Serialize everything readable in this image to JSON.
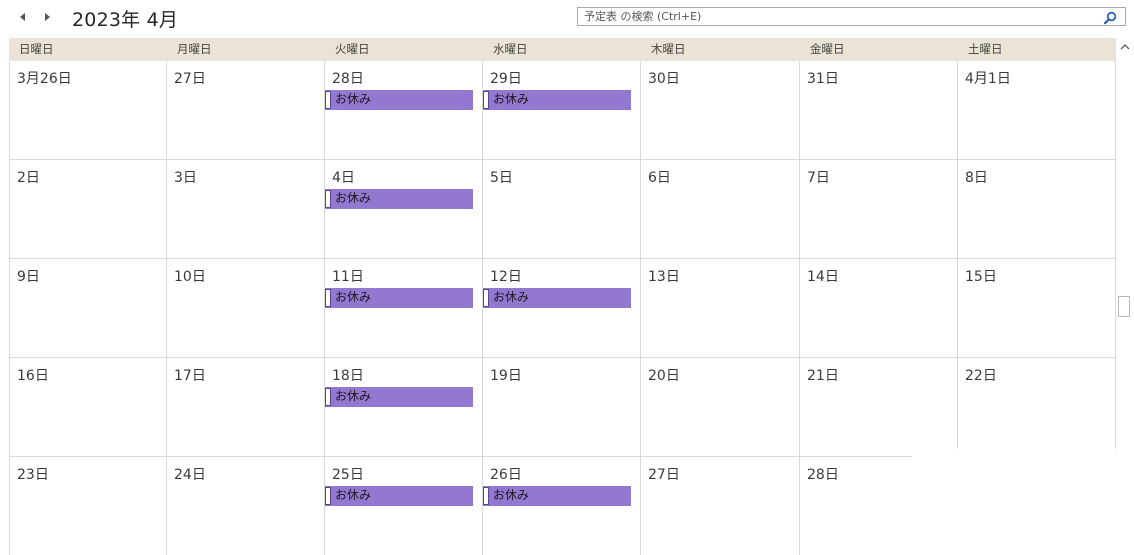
{
  "header": {
    "title": "2023年 4月",
    "search_placeholder": "予定表 の検索 (Ctrl+E)"
  },
  "weekdays": [
    "日曜日",
    "月曜日",
    "火曜日",
    "水曜日",
    "木曜日",
    "金曜日",
    "土曜日"
  ],
  "weeks": [
    [
      "3月26日",
      "27日",
      "28日",
      "29日",
      "30日",
      "31日",
      "4月1日"
    ],
    [
      "2日",
      "3日",
      "4日",
      "5日",
      "6日",
      "7日",
      "8日"
    ],
    [
      "9日",
      "10日",
      "11日",
      "12日",
      "13日",
      "14日",
      "15日"
    ],
    [
      "16日",
      "17日",
      "18日",
      "19日",
      "20日",
      "21日",
      "22日"
    ],
    [
      "23日",
      "24日",
      "25日",
      "26日",
      "27日",
      "28日",
      ""
    ]
  ],
  "event_label": "お休み",
  "event_color": "#9378d1",
  "events": [
    {
      "week": 0,
      "day": 2
    },
    {
      "week": 0,
      "day": 3
    },
    {
      "week": 1,
      "day": 2
    },
    {
      "week": 2,
      "day": 2
    },
    {
      "week": 2,
      "day": 3
    },
    {
      "week": 3,
      "day": 2
    },
    {
      "week": 4,
      "day": 2
    },
    {
      "week": 4,
      "day": 3
    }
  ]
}
